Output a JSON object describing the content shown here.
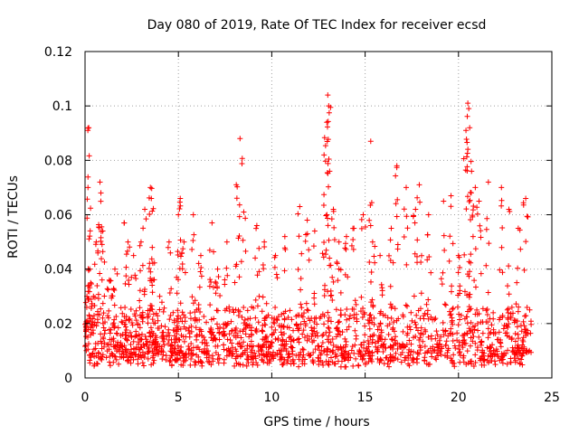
{
  "chart_data": {
    "type": "scatter",
    "title": "Day 080 of 2019, Rate Of TEC Index for receiver ecsd",
    "xlabel": "GPS time / hours",
    "ylabel": "ROTI / TECUs",
    "xlim": [
      0,
      25
    ],
    "ylim": [
      0,
      0.12
    ],
    "xticks": [
      0,
      5,
      10,
      15,
      20,
      25
    ],
    "xtick_labels": [
      "0",
      "5",
      "10",
      "15",
      "20",
      "25"
    ],
    "yticks": [
      0,
      0.02,
      0.04,
      0.06,
      0.08,
      0.1,
      0.12
    ],
    "ytick_labels": [
      "0",
      "0.02",
      "0.04",
      "0.06",
      "0.08",
      "0.1",
      "0.12"
    ],
    "grid": true,
    "marker": "plus",
    "color": "#ff0000",
    "data_x_range": [
      0,
      23.9
    ],
    "background_band": [
      0.004,
      0.022
    ],
    "series": [
      {
        "name": "ROTI",
        "x": [
          0.05,
          0.1,
          0.15,
          0.2,
          0.25,
          0.3,
          0.45,
          0.6,
          0.8,
          0.85,
          0.95,
          1.3,
          1.6,
          2.1,
          2.3,
          2.6,
          3.0,
          3.2,
          3.5,
          3.55,
          3.6,
          4.0,
          4.5,
          5.0,
          5.1,
          5.3,
          5.8,
          6.2,
          6.8,
          7.1,
          7.6,
          8.1,
          8.3,
          8.5,
          9.2,
          9.6,
          10.2,
          10.7,
          11.5,
          11.9,
          12.3,
          12.8,
          12.95,
          13.0,
          13.05,
          13.1,
          13.3,
          13.6,
          14.0,
          14.4,
          14.9,
          15.3,
          15.4,
          15.8,
          16.4,
          16.7,
          17.2,
          17.7,
          17.9,
          18.4,
          19.2,
          19.6,
          20.0,
          20.4,
          20.5,
          20.55,
          20.6,
          20.7,
          20.9,
          21.1,
          21.6,
          22.3,
          22.7,
          23.2,
          23.6
        ],
        "y": [
          0.02,
          0.03,
          0.091,
          0.092,
          0.04,
          0.035,
          0.03,
          0.05,
          0.072,
          0.068,
          0.054,
          0.036,
          0.04,
          0.057,
          0.05,
          0.045,
          0.05,
          0.062,
          0.07,
          0.066,
          0.048,
          0.03,
          0.05,
          0.06,
          0.066,
          0.05,
          0.06,
          0.045,
          0.057,
          0.04,
          0.05,
          0.071,
          0.088,
          0.061,
          0.056,
          0.05,
          0.045,
          0.052,
          0.063,
          0.058,
          0.054,
          0.082,
          0.094,
          0.104,
          0.1,
          0.076,
          0.062,
          0.05,
          0.052,
          0.055,
          0.06,
          0.087,
          0.05,
          0.045,
          0.055,
          0.078,
          0.07,
          0.062,
          0.071,
          0.06,
          0.065,
          0.067,
          0.045,
          0.091,
          0.101,
          0.099,
          0.092,
          0.076,
          0.07,
          0.065,
          0.072,
          0.07,
          0.062,
          0.055,
          0.066
        ]
      }
    ]
  }
}
